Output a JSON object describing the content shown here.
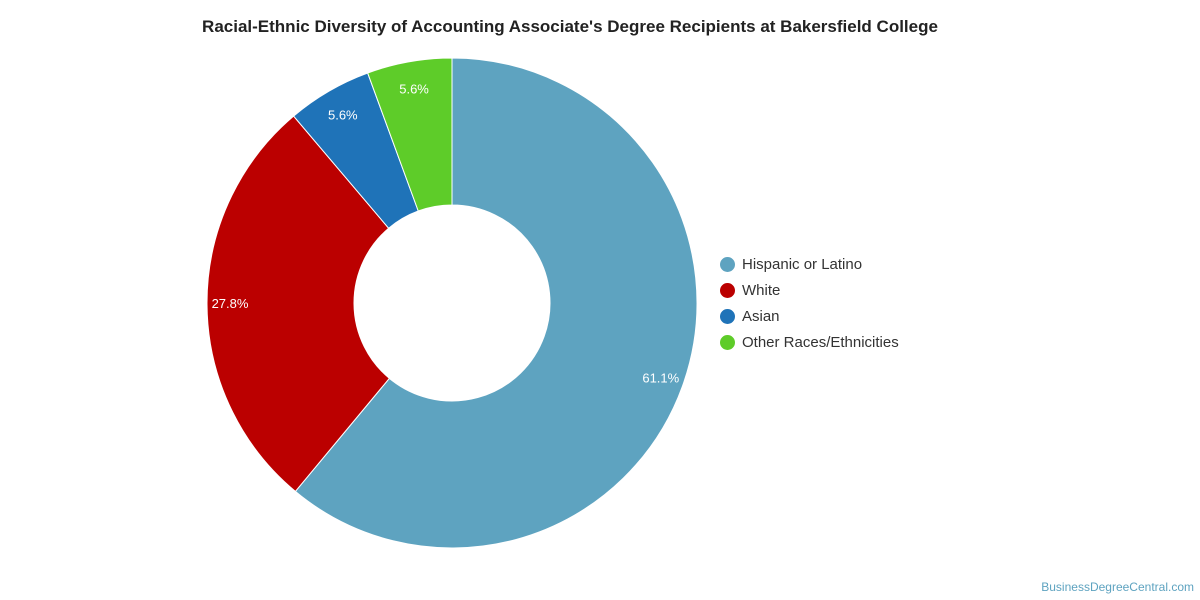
{
  "chart_data": {
    "type": "pie",
    "title": "Racial-Ethnic Diversity of Accounting Associate's Degree Recipients at Bakersfield College",
    "categories": [
      "Hispanic or Latino",
      "White",
      "Asian",
      "Other Races/Ethnicities"
    ],
    "values": [
      61.1,
      27.8,
      5.6,
      5.6
    ],
    "labels": [
      "61.1%",
      "27.8%",
      "5.6%",
      "5.6%"
    ],
    "colors": [
      "#5ea3c0",
      "#bb0000",
      "#1f73b8",
      "#5ecc29"
    ],
    "donut": true,
    "legend": "right"
  },
  "credit": "BusinessDegreeCentral.com"
}
